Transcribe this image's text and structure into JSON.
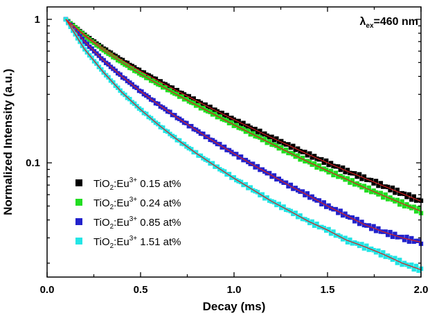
{
  "chart_data": {
    "type": "scatter",
    "title": "",
    "xlabel": "Decay (ms)",
    "ylabel": "Normalized Intensity (a.u.)",
    "xlim": [
      0.0,
      2.0
    ],
    "ylim": [
      0.016,
      1.22
    ],
    "yscale": "log",
    "x_ticks": [
      0.0,
      0.5,
      1.0,
      1.5,
      2.0
    ],
    "x_tick_labels": [
      "0.0",
      "0.5",
      "1.0",
      "1.5",
      "2.0"
    ],
    "y_ticks": [
      0.1,
      1
    ],
    "y_tick_labels": [
      "0.1",
      "1"
    ],
    "grid": false,
    "legend_position": "bottom-left",
    "annotation": {
      "lambda": "λ",
      "sub": "ex",
      "rest": "=460 nm"
    },
    "fit_color": "#d42020",
    "series": [
      {
        "name": "TiO2:Eu3+ 0.15 at%",
        "label_base": "TiO",
        "label_sub": "2",
        "label_mid": ":Eu",
        "label_sup": "3+",
        "label_tail": " 0.15 at%",
        "color": "#000000",
        "x": [
          0.1,
          0.2,
          0.3,
          0.4,
          0.5,
          0.6,
          0.7,
          0.8,
          0.9,
          1.0,
          1.1,
          1.2,
          1.3,
          1.4,
          1.5,
          1.6,
          1.7,
          1.8,
          1.9,
          2.0
        ],
        "values": [
          1.0,
          0.78,
          0.63,
          0.52,
          0.435,
          0.37,
          0.315,
          0.27,
          0.232,
          0.2,
          0.173,
          0.15,
          0.131,
          0.114,
          0.1,
          0.088,
          0.078,
          0.069,
          0.061,
          0.054
        ]
      },
      {
        "name": "TiO2:Eu3+ 0.24 at%",
        "label_base": "TiO",
        "label_sub": "2",
        "label_mid": ":Eu",
        "label_sup": "3+",
        "label_tail": " 0.24 at%",
        "color": "#22dd22",
        "x": [
          0.1,
          0.2,
          0.3,
          0.4,
          0.5,
          0.6,
          0.7,
          0.8,
          0.9,
          1.0,
          1.1,
          1.2,
          1.3,
          1.4,
          1.5,
          1.6,
          1.7,
          1.8,
          1.9,
          2.0
        ],
        "values": [
          1.0,
          0.77,
          0.61,
          0.5,
          0.415,
          0.35,
          0.296,
          0.252,
          0.215,
          0.184,
          0.158,
          0.136,
          0.117,
          0.101,
          0.088,
          0.077,
          0.067,
          0.059,
          0.052,
          0.046
        ]
      },
      {
        "name": "TiO2:Eu3+ 0.85 at%",
        "label_base": "TiO",
        "label_sub": "2",
        "label_mid": ":Eu",
        "label_sup": "3+",
        "label_tail": " 0.85 at%",
        "color": "#2222cc",
        "x": [
          0.1,
          0.2,
          0.3,
          0.4,
          0.5,
          0.6,
          0.7,
          0.8,
          0.9,
          1.0,
          1.1,
          1.2,
          1.3,
          1.4,
          1.5,
          1.6,
          1.7,
          1.8,
          1.9,
          2.0
        ],
        "values": [
          1.0,
          0.7,
          0.52,
          0.4,
          0.315,
          0.252,
          0.205,
          0.168,
          0.139,
          0.116,
          0.097,
          0.082,
          0.069,
          0.059,
          0.05,
          0.043,
          0.037,
          0.033,
          0.03,
          0.028
        ]
      },
      {
        "name": "TiO2:Eu3+ 1.51 at%",
        "label_base": "TiO",
        "label_sub": "2",
        "label_mid": ":Eu",
        "label_sup": "3+",
        "label_tail": " 1.51 at%",
        "color": "#22e5e5",
        "x": [
          0.1,
          0.2,
          0.3,
          0.4,
          0.5,
          0.6,
          0.7,
          0.8,
          0.9,
          1.0,
          1.1,
          1.2,
          1.3,
          1.4,
          1.5,
          1.6,
          1.7,
          1.8,
          1.9,
          2.0
        ],
        "values": [
          1.0,
          0.62,
          0.43,
          0.31,
          0.235,
          0.182,
          0.144,
          0.116,
          0.095,
          0.078,
          0.065,
          0.054,
          0.046,
          0.039,
          0.034,
          0.029,
          0.026,
          0.023,
          0.02,
          0.018
        ]
      }
    ]
  }
}
